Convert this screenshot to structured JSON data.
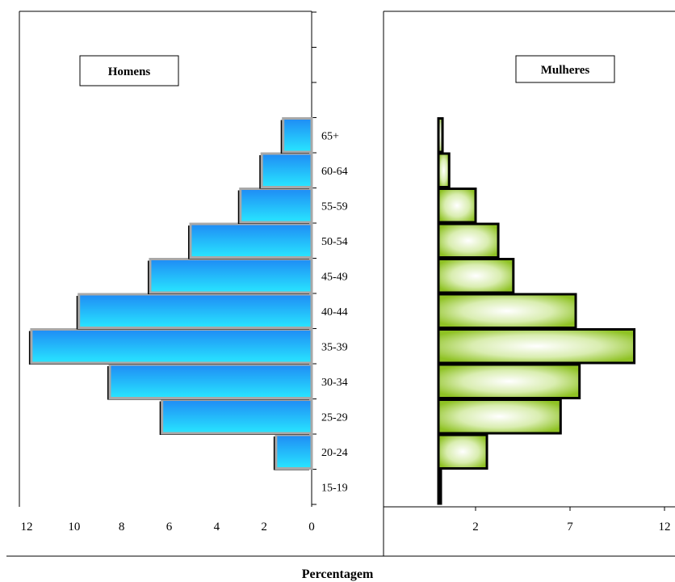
{
  "chart_data": {
    "type": "bar",
    "orientation": "horizontal",
    "xlabel": "Percentagem",
    "categories": [
      "15-19",
      "20-24",
      "25-29",
      "30-34",
      "35-39",
      "40-44",
      "45-49",
      "50-54",
      "55-59",
      "60-64",
      "65+"
    ],
    "series": [
      {
        "name": "Homens",
        "values": [
          0,
          1.5,
          6.3,
          8.5,
          11.8,
          9.8,
          6.8,
          5.1,
          3.0,
          2.1,
          1.2
        ],
        "color": "#2aa6ff",
        "xlim": [
          0,
          12
        ],
        "ticks": [
          12,
          10,
          8,
          6,
          4,
          2,
          0
        ],
        "tick_labels": [
          "12",
          "10",
          "8",
          "6",
          "4",
          "2",
          "0"
        ]
      },
      {
        "name": "Mulheres",
        "values": [
          0.1,
          2.6,
          6.5,
          7.5,
          10.4,
          7.3,
          4.0,
          3.2,
          2.0,
          0.6,
          0.25
        ],
        "color": "#9ccc2e",
        "xlim": [
          -2,
          12
        ],
        "ticks": [
          2,
          7,
          12
        ],
        "tick_labels": [
          "2",
          "7",
          "12"
        ]
      }
    ],
    "legend": {
      "left": "Homens",
      "right": "Mulheres"
    }
  }
}
